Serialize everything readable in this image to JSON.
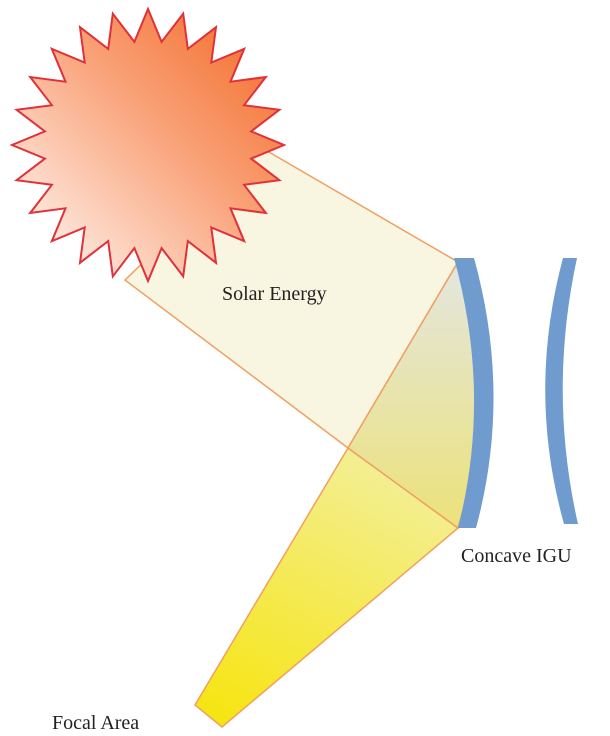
{
  "labels": {
    "solar_energy": "Solar Energy",
    "concave_igu": "Concave IGU",
    "focal_area": "Focal Area"
  }
}
